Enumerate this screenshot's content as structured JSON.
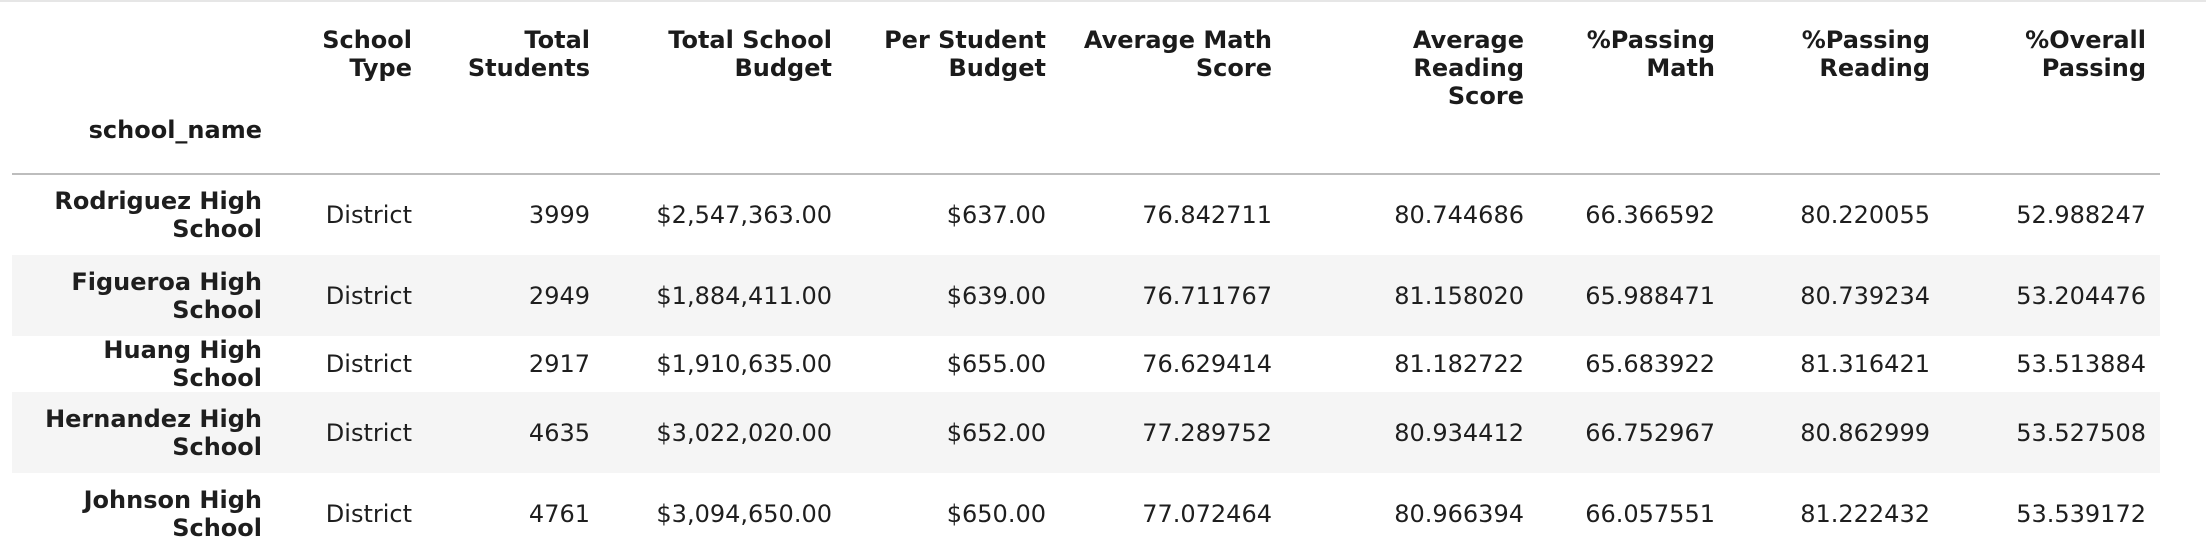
{
  "table": {
    "index_name": "school_name",
    "columns": [
      "School Type",
      "Total Students",
      "Total School Budget",
      "Per Student Budget",
      "Average Math Score",
      "Average Reading Score",
      "%Passing Math",
      "%Passing Reading",
      "%Overall Passing"
    ],
    "header_lines": [
      [
        "School",
        "Type"
      ],
      [
        "Total",
        "Students"
      ],
      [
        "Total School",
        "Budget"
      ],
      [
        "Per Student",
        "Budget"
      ],
      [
        "Average Math",
        "Score"
      ],
      [
        "Average Reading",
        "Score"
      ],
      [
        "%Passing",
        "Math"
      ],
      [
        "%Passing",
        "Reading"
      ],
      [
        "%Overall",
        "Passing"
      ]
    ],
    "rows": [
      {
        "name_lines": [
          "Rodriguez High",
          "School"
        ],
        "cells": [
          "District",
          "3999",
          "$2,547,363.00",
          "$637.00",
          "76.842711",
          "80.744686",
          "66.366592",
          "80.220055",
          "52.988247"
        ]
      },
      {
        "name_lines": [
          "Figueroa High",
          "School"
        ],
        "cells": [
          "District",
          "2949",
          "$1,884,411.00",
          "$639.00",
          "76.711767",
          "81.158020",
          "65.988471",
          "80.739234",
          "53.204476"
        ]
      },
      {
        "name_lines": [
          "Huang High School"
        ],
        "cells": [
          "District",
          "2917",
          "$1,910,635.00",
          "$655.00",
          "76.629414",
          "81.182722",
          "65.683922",
          "81.316421",
          "53.513884"
        ]
      },
      {
        "name_lines": [
          "Hernandez High",
          "School"
        ],
        "cells": [
          "District",
          "4635",
          "$3,022,020.00",
          "$652.00",
          "77.289752",
          "80.934412",
          "66.752967",
          "80.862999",
          "53.527508"
        ]
      },
      {
        "name_lines": [
          "Johnson High",
          "School"
        ],
        "cells": [
          "District",
          "4761",
          "$3,094,650.00",
          "$650.00",
          "77.072464",
          "80.966394",
          "66.057551",
          "81.222432",
          "53.539172"
        ]
      }
    ]
  }
}
